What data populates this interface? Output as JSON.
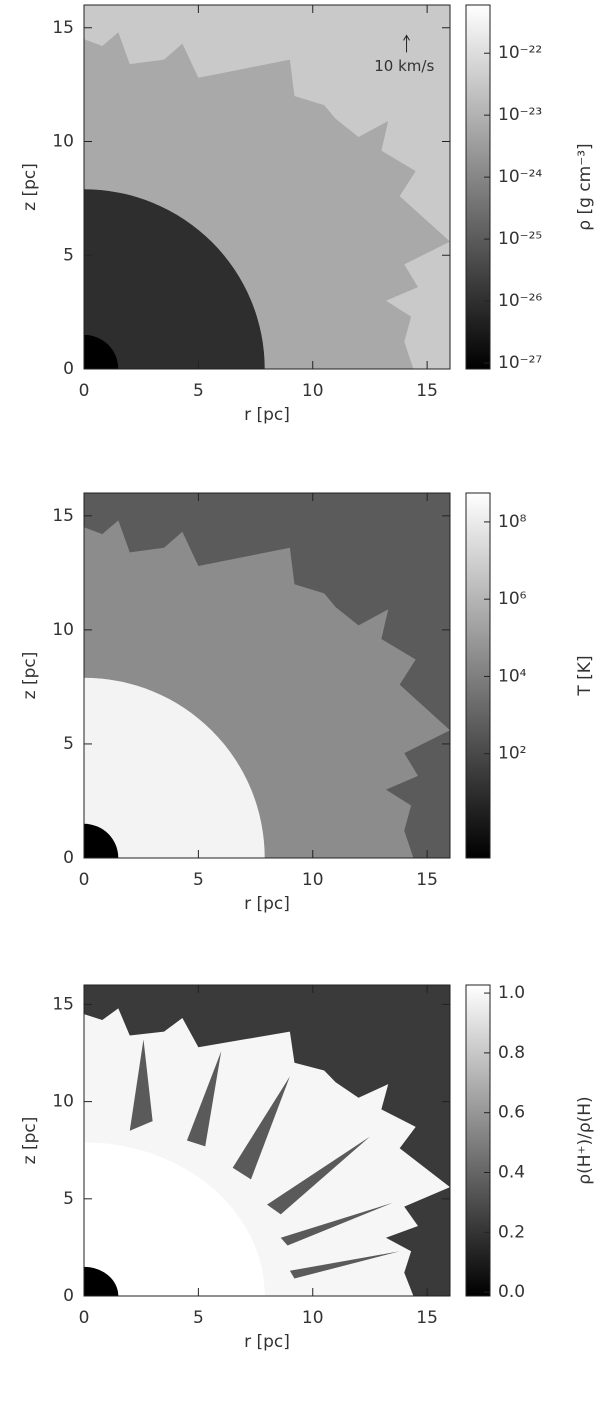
{
  "chart_data": [
    {
      "type": "image",
      "xlabel": "r [pc]",
      "ylabel": "z [pc]",
      "xlim": [
        0,
        16
      ],
      "ylim": [
        0,
        16
      ],
      "xticks": [
        0,
        5,
        10,
        15
      ],
      "yticks": [
        0,
        5,
        10,
        15
      ],
      "colorbar_label": "ρ [g cm⁻³]",
      "colorbar_log": true,
      "clim": [
        8e-28,
        6e-22
      ],
      "colorbar_ticks": [
        {
          "value": 1e-27,
          "label": "10⁻²⁷"
        },
        {
          "value": 1e-26,
          "label": "10⁻²⁶"
        },
        {
          "value": 1e-25,
          "label": "10⁻²⁵"
        },
        {
          "value": 1e-24,
          "label": "10⁻²⁴"
        },
        {
          "value": 1e-23,
          "label": "10⁻²³"
        },
        {
          "value": 1e-22,
          "label": "10⁻²²"
        }
      ],
      "annotation": "10 km/s"
    },
    {
      "type": "image",
      "xlabel": "r [pc]",
      "ylabel": "z [pc]",
      "xlim": [
        0,
        16
      ],
      "ylim": [
        0,
        16
      ],
      "xticks": [
        0,
        5,
        10,
        15
      ],
      "yticks": [
        0,
        5,
        10,
        15
      ],
      "colorbar_label": "T [K]",
      "colorbar_log": true,
      "clim": [
        0.2,
        560000000
      ],
      "colorbar_ticks": [
        {
          "value": 100,
          "label": "10²"
        },
        {
          "value": 10000,
          "label": "10⁴"
        },
        {
          "value": 1000000,
          "label": "10⁶"
        },
        {
          "value": 100000000,
          "label": "10⁸"
        }
      ]
    },
    {
      "type": "image",
      "xlabel": "r [pc]",
      "ylabel": "z [pc]",
      "xlim": [
        0,
        16
      ],
      "ylim": [
        0,
        16
      ],
      "xticks": [
        0,
        5,
        10,
        15
      ],
      "yticks": [
        0,
        5,
        10,
        15
      ],
      "colorbar_label": "ρ(H⁺)/ρ(H)",
      "colorbar_log": false,
      "clim": [
        -0.013,
        1.027
      ],
      "colorbar_ticks": [
        {
          "value": 0,
          "label": "0.0"
        },
        {
          "value": 0.2,
          "label": "0.2"
        },
        {
          "value": 0.4,
          "label": "0.4"
        },
        {
          "value": 0.6,
          "label": "0.6"
        },
        {
          "value": 0.8,
          "label": "0.8"
        },
        {
          "value": 1,
          "label": "1.0"
        }
      ]
    }
  ]
}
